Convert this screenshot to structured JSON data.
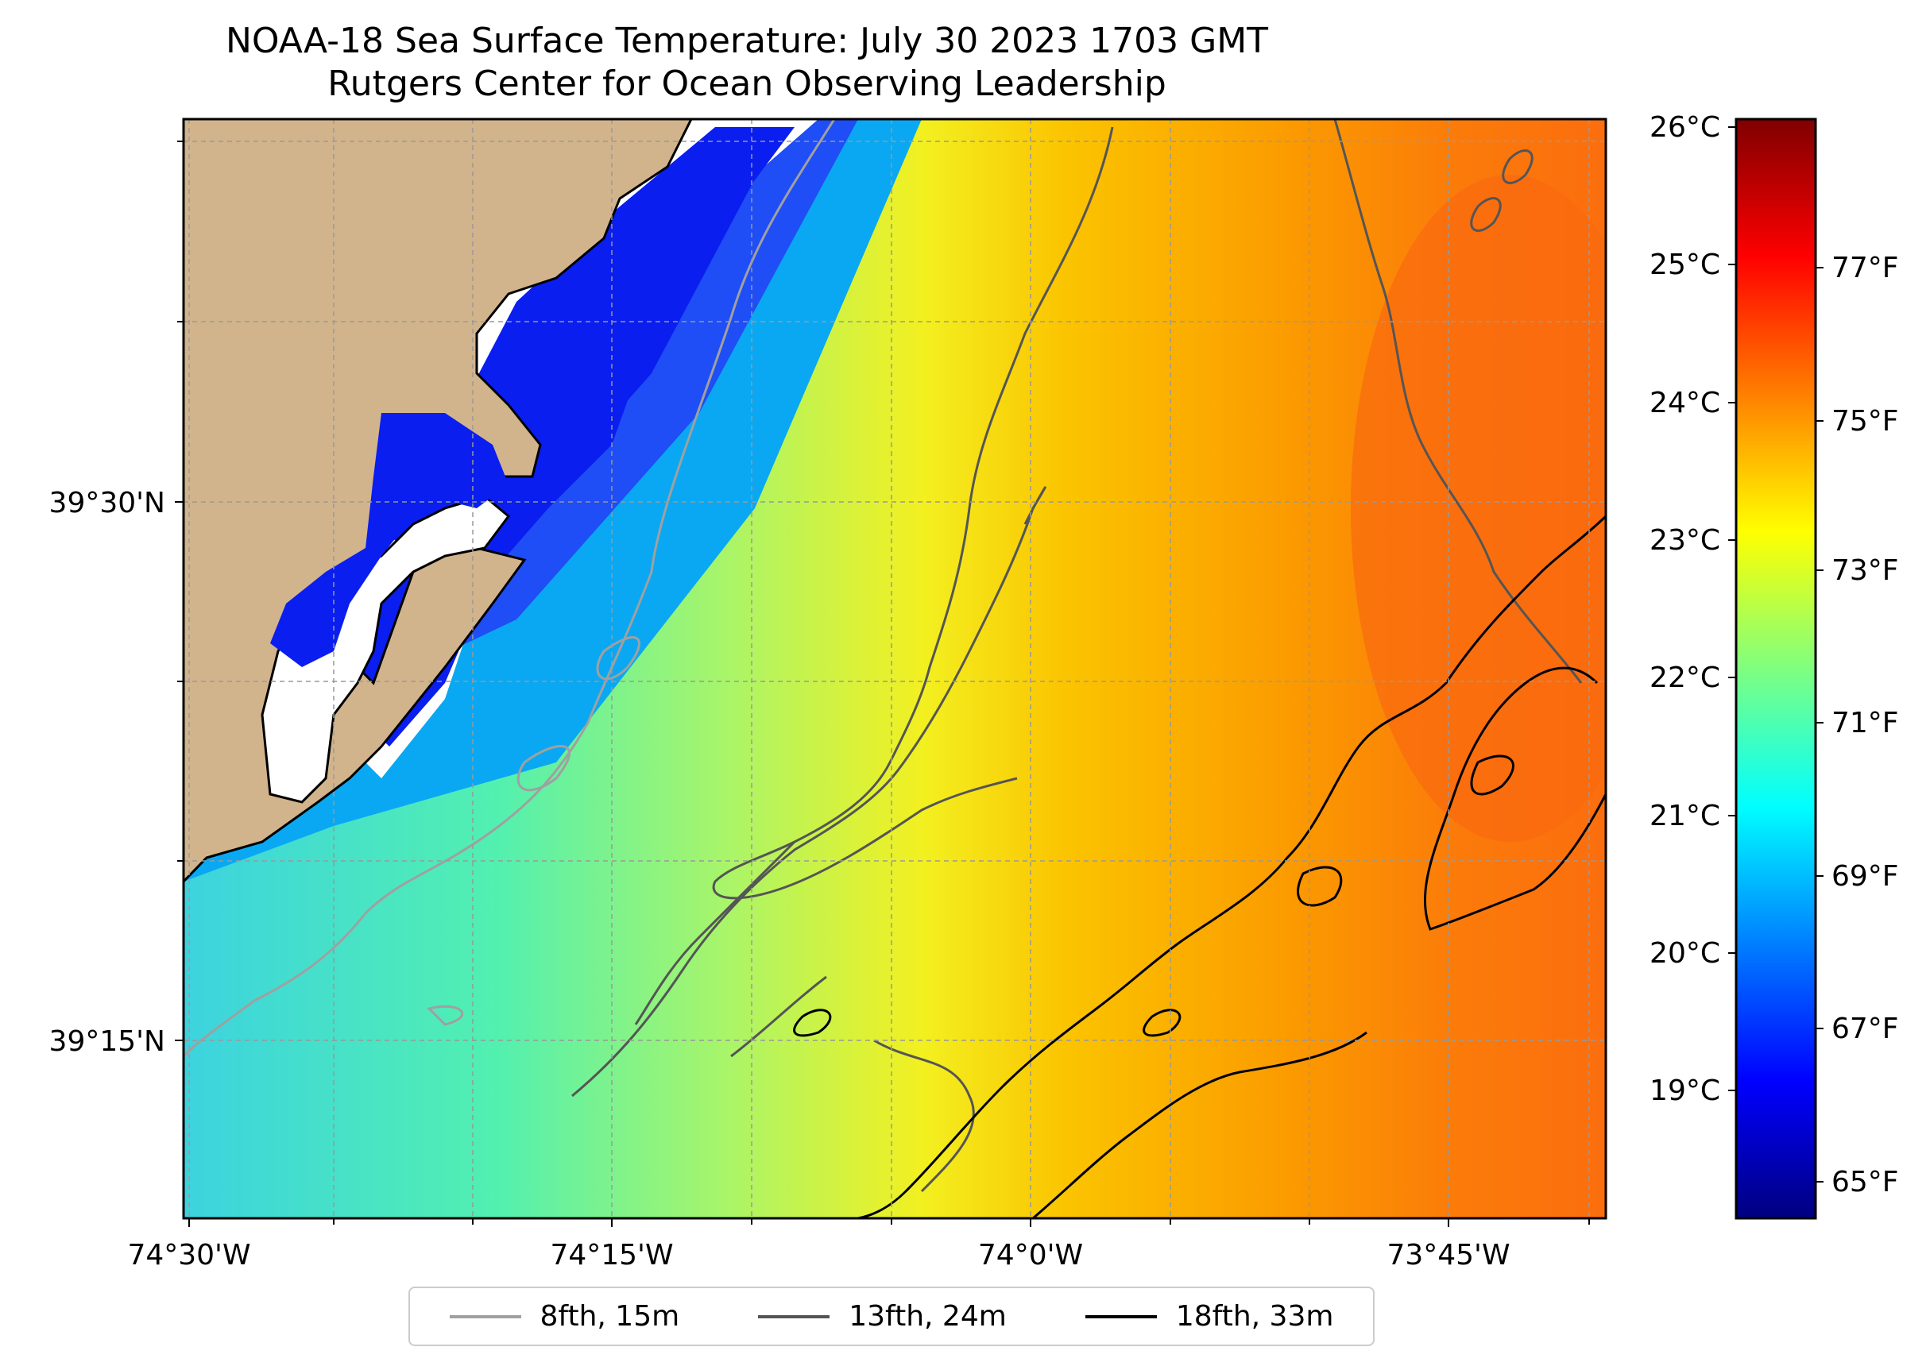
{
  "title": "NOAA-18 Sea Surface Temperature: July 30 2023 1703 GMT",
  "subtitle": "Rutgers Center for Ocean Observing Leadership",
  "axes": {
    "longitude_ticks": [
      "74°30'W",
      "74°15'W",
      "74°0'W",
      "73°45'W"
    ],
    "latitude_ticks": [
      "39°30'N",
      "39°15'N"
    ]
  },
  "colorbar": {
    "celsius_ticks": [
      "26°C",
      "25°C",
      "24°C",
      "23°C",
      "22°C",
      "21°C",
      "20°C",
      "19°C"
    ],
    "fahrenheit_ticks": [
      "77°F",
      "75°F",
      "73°F",
      "71°F",
      "69°F",
      "67°F",
      "65°F"
    ],
    "colormap": [
      "#00007f",
      "#0000ff",
      "#007fff",
      "#00ffff",
      "#7fff7f",
      "#ffff00",
      "#ff7f00",
      "#ff0000",
      "#7f0000"
    ]
  },
  "legend": [
    {
      "label": "8fth, 15m",
      "color": "#a0a0a0"
    },
    {
      "label": "13fth, 24m",
      "color": "#555555"
    },
    {
      "label": "18fth, 33m",
      "color": "#000000"
    }
  ],
  "colors": {
    "land": "#d2b48c",
    "coastline": "#000000",
    "missing": "#ffffff"
  }
}
